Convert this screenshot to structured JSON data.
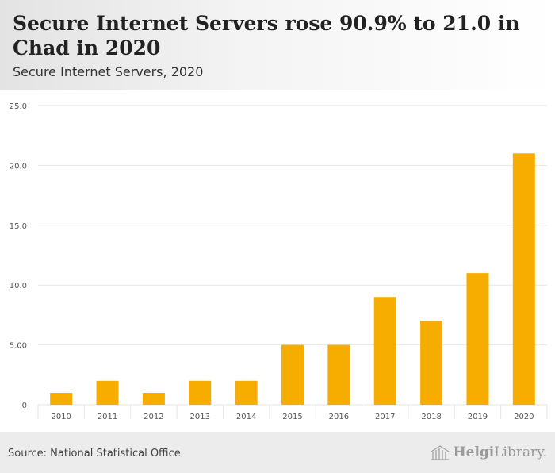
{
  "title": "Secure Internet Servers rose 90.9% to 21.0 in Chad in 2020",
  "subtitle": "Secure Internet Servers, 2020",
  "source": "Source: National Statistical Office",
  "brand": {
    "name_bold": "Helgi",
    "name_light": "Library."
  },
  "colors": {
    "bar": "#f7ac00",
    "grid": "#e6e6e6",
    "axis_text": "#555555"
  },
  "chart_data": {
    "type": "bar",
    "title": "Secure Internet Servers rose 90.9% to 21.0 in Chad in 2020",
    "subtitle": "Secure Internet Servers, 2020",
    "xlabel": "",
    "ylabel": "",
    "categories": [
      "2010",
      "2011",
      "2012",
      "2013",
      "2014",
      "2015",
      "2016",
      "2017",
      "2018",
      "2019",
      "2020"
    ],
    "values": [
      1,
      2,
      1,
      2,
      2,
      5,
      5,
      9,
      7,
      11,
      21
    ],
    "ylim": [
      0,
      25
    ],
    "yticks": [
      0,
      5,
      10,
      15,
      20,
      25
    ],
    "ytick_labels": [
      "0",
      "5.00",
      "10.0",
      "15.0",
      "20.0",
      "25.0"
    ],
    "grid": true,
    "legend": "none"
  }
}
